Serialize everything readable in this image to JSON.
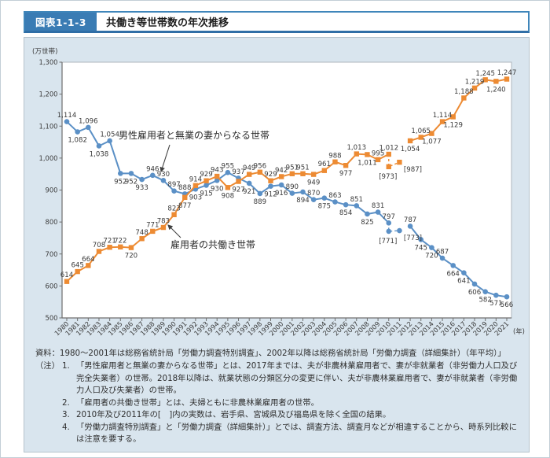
{
  "header": {
    "figure_label": "図表1-1-3",
    "title": "共働き等世帯数の年次推移"
  },
  "chart_data": {
    "type": "line",
    "title": "共働き等世帯数の年次推移",
    "grid": false,
    "y_axis": {
      "unit": "(万世帯)",
      "min": 500,
      "max": 1300,
      "step": 100
    },
    "x_axis": {
      "unit": "(年)",
      "years": [
        1980,
        1981,
        1982,
        1983,
        1984,
        1985,
        1986,
        1987,
        1988,
        1989,
        1990,
        1991,
        1992,
        1993,
        1994,
        1995,
        1996,
        1997,
        1998,
        1999,
        2000,
        2001,
        2002,
        2003,
        2004,
        2005,
        2006,
        2007,
        2008,
        2009,
        2010,
        2011,
        2012,
        2013,
        2014,
        2015,
        2016,
        2017,
        2018,
        2019,
        2020,
        2021
      ]
    },
    "series": [
      {
        "name": "男性雇用者と無業の妻からなる世帯",
        "color": "#5b90c6",
        "marker": "circle",
        "values": [
          1114,
          1082,
          1096,
          1038,
          1054,
          952,
          952,
          933,
          946,
          930,
          897,
          888,
          903,
          915,
          930,
          955,
          937,
          921,
          889,
          912,
          916,
          890,
          894,
          870,
          875,
          863,
          854,
          851,
          825,
          831,
          797,
          null,
          787,
          745,
          720,
          687,
          664,
          641,
          606,
          582,
          571,
          566
        ],
        "label_side": [
          "a",
          "b",
          "a",
          "b",
          "a",
          "b",
          "b",
          "b",
          "a",
          "a",
          "a",
          "a",
          "b",
          "b",
          "b",
          "a",
          "a",
          "b",
          "b",
          "b",
          "b",
          "a",
          "b",
          "a",
          "b",
          "a",
          "b",
          "a",
          "b",
          "a",
          "a",
          null,
          "a",
          "b",
          "b",
          "a",
          "b",
          "b",
          "b",
          "b",
          "b",
          "b"
        ],
        "bracketed_points": [
          {
            "year": 2010,
            "value": 771,
            "label": "[771]"
          },
          {
            "year": 2011,
            "value": 773,
            "label": "[773]"
          }
        ]
      },
      {
        "name": "雇用者の共働き世帯",
        "color": "#ed8b33",
        "marker": "square",
        "values": [
          614,
          645,
          664,
          708,
          721,
          722,
          720,
          748,
          771,
          783,
          823,
          877,
          914,
          929,
          943,
          908,
          927,
          949,
          956,
          929,
          942,
          951,
          951,
          949,
          961,
          988,
          977,
          1013,
          1011,
          995,
          1012,
          null,
          1054,
          1065,
          1077,
          1114,
          1129,
          1188,
          1219,
          1245,
          1240,
          1247
        ],
        "label_side": [
          "a",
          "a",
          "a",
          "a",
          "a",
          "a",
          "b",
          "a",
          "a",
          "a",
          "a",
          "b",
          "a",
          "a",
          "a",
          "b",
          "b",
          "a",
          "a",
          "a",
          "a",
          "a",
          "a",
          "b",
          "a",
          "a",
          "b",
          "a",
          "b",
          "a",
          "a",
          null,
          "b",
          "a",
          "b",
          "a",
          "b",
          "a",
          "a",
          "a",
          "b",
          "a"
        ],
        "bracketed_points": [
          {
            "year": 2010,
            "value": 973,
            "label": "[973]"
          },
          {
            "year": 2011,
            "value": 987,
            "label": "[987]"
          }
        ]
      }
    ],
    "annotations": [
      {
        "text": "男性雇用者と無業の妻からなる世帯"
      },
      {
        "text": "雇用者の共働き世帯"
      }
    ]
  },
  "notes": {
    "source": "資料：1980～2001年は総務省統計局「労働力調査特別調査」、2002年以降は総務省統計局「労働力調査（詳細集計）（年平均）」",
    "note_label": "（注）",
    "items": [
      {
        "n": "1.",
        "t": "「男性雇用者と無業の妻からなる世帯」とは、2017年までは、夫が非農林業雇用者で、妻が非就業者（非労働力人口及び完全失業者）の世帯。2018年以降は、就業状態の分類区分の変更に伴い、夫が非農林業雇用者で、妻が非就業者（非労働力人口及び失業者）の世帯。"
      },
      {
        "n": "2.",
        "t": "「雇用者の共働き世帯」とは、夫婦ともに非農林業雇用者の世帯。"
      },
      {
        "n": "3.",
        "t": "2010年及び2011年の[　]内の実数は、岩手県、宮城県及び福島県を除く全国の結果。"
      },
      {
        "n": "4.",
        "t": "「労働力調査特別調査」と「労働力調査（詳細集計）」とでは、調査方法、調査月などが相違することから、時系列比較には注意を要する。"
      }
    ]
  }
}
